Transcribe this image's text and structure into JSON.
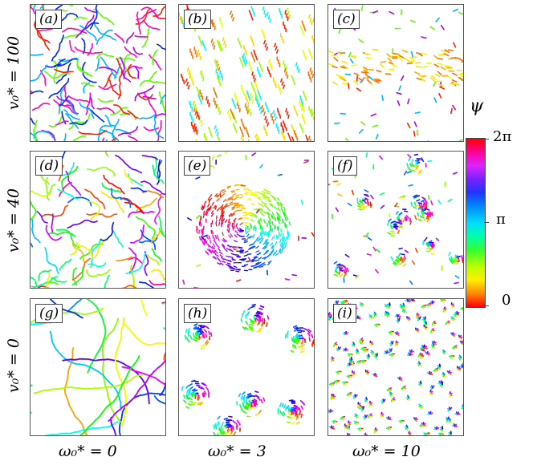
{
  "panels": [
    {
      "label": "(a)",
      "pattern": "dense-random"
    },
    {
      "label": "(b)",
      "pattern": "banded-warm"
    },
    {
      "label": "(c)",
      "pattern": "band-yellow"
    },
    {
      "label": "(d)",
      "pattern": "sparse-random"
    },
    {
      "label": "(e)",
      "pattern": "vortex-cluster"
    },
    {
      "label": "(f)",
      "pattern": "small-clusters"
    },
    {
      "label": "(g)",
      "pattern": "long-chains"
    },
    {
      "label": "(h)",
      "pattern": "edge-clusters"
    },
    {
      "label": "(i)",
      "pattern": "short-curls"
    }
  ],
  "row_labels": [
    "v₀* = 100",
    "v₀* = 40",
    "v₀* = 0"
  ],
  "col_labels": [
    "ω₀* = 0",
    "ω₀* = 3",
    "ω₀* = 10"
  ],
  "colorbar": {
    "title": "ψ",
    "tick_top": "2π",
    "tick_mid": "π",
    "tick_bottom": "0"
  }
}
